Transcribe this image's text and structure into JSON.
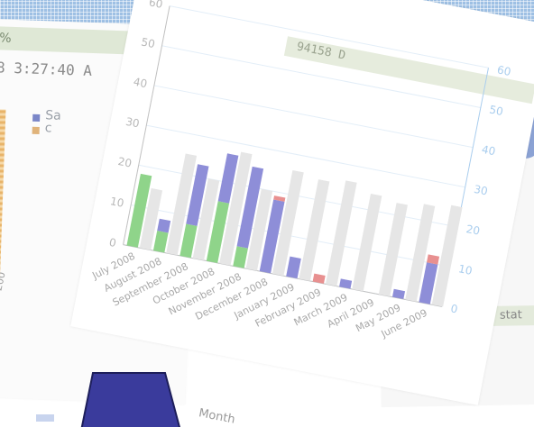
{
  "left_window": {
    "bar_text": "%",
    "timestamp": "8 3:27:40 A",
    "legend_text": "Sa\nc",
    "side_text": "200"
  },
  "right_window": {
    "axis_labels": [
      "60",
      "50",
      "40",
      "30",
      "20",
      "10"
    ],
    "status_text": "stat"
  },
  "card": {
    "header_text": "94158 D"
  },
  "chart_data": {
    "type": "bar",
    "title": "",
    "xlabel": "Month",
    "ylabel": "",
    "categories": [
      "July 2008",
      "August 2008",
      "September 2008",
      "October 2008",
      "November 2008",
      "December 2008",
      "January 2009",
      "February 2009",
      "March 2009",
      "April 2009",
      "May 2009",
      "June 2009"
    ],
    "ylim": [
      0,
      60
    ],
    "yticks": [
      0,
      10,
      20,
      30,
      40,
      50,
      60
    ],
    "y2ticks": [
      0,
      10,
      20,
      30,
      40,
      50,
      60
    ],
    "series": [
      {
        "color": "#8fd48a",
        "values": [
          18,
          5,
          8,
          15,
          5,
          0,
          0,
          0,
          0,
          0,
          0,
          0
        ]
      },
      {
        "color": "#8e8ed8",
        "values": [
          0,
          3,
          15,
          12,
          20,
          18,
          5,
          0,
          2,
          0,
          2,
          10
        ]
      },
      {
        "color": "#e89090",
        "values": [
          0,
          0,
          0,
          0,
          0,
          1,
          0,
          2,
          0,
          0,
          0,
          2
        ]
      },
      {
        "color": "#e6e6e6",
        "values": [
          15,
          25,
          20,
          28,
          20,
          26,
          25,
          26,
          24,
          23,
          24,
          25
        ]
      }
    ],
    "grid": true,
    "colors": {
      "axis_left": "#c0c0c0",
      "axis_right": "#a9cdee",
      "grid": "#e3eef8"
    }
  },
  "xlabel_display": "Month"
}
